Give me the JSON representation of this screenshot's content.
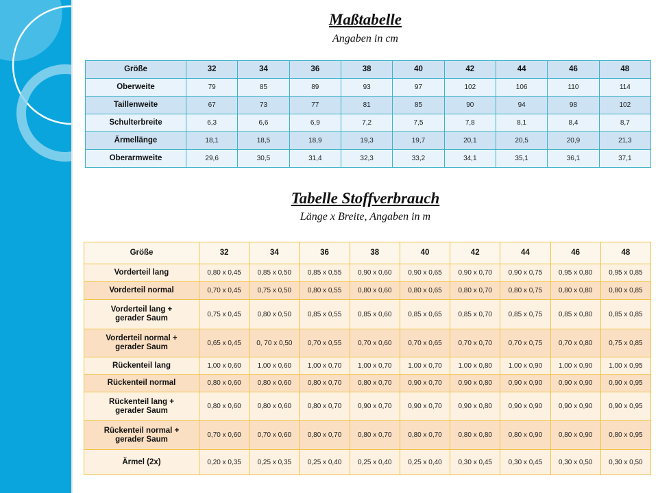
{
  "measurements": {
    "title": "Maßtabelle",
    "subtitle": "Angaben in cm",
    "header": [
      "Größe",
      "32",
      "34",
      "36",
      "38",
      "40",
      "42",
      "44",
      "46",
      "48"
    ],
    "rows": [
      [
        "Oberweite",
        "79",
        "85",
        "89",
        "93",
        "97",
        "102",
        "106",
        "110",
        "114"
      ],
      [
        "Taillenweite",
        "67",
        "73",
        "77",
        "81",
        "85",
        "90",
        "94",
        "98",
        "102"
      ],
      [
        "Schulterbreite",
        "6,3",
        "6,6",
        "6,9",
        "7,2",
        "7,5",
        "7,8",
        "8,1",
        "8,4",
        "8,7"
      ],
      [
        "Ärmellänge",
        "18,1",
        "18,5",
        "18,9",
        "19,3",
        "19,7",
        "20,1",
        "20,5",
        "20,9",
        "21,3"
      ],
      [
        "Oberarmweite",
        "29,6",
        "30,5",
        "31,4",
        "32,3",
        "33,2",
        "34,1",
        "35,1",
        "36,1",
        "37,1"
      ]
    ]
  },
  "fabric": {
    "title": "Tabelle Stoffverbrauch",
    "subtitle": "Länge x Breite, Angaben in m",
    "header": [
      "Größe",
      "32",
      "34",
      "36",
      "38",
      "40",
      "42",
      "44",
      "46",
      "48"
    ],
    "rows": [
      [
        "Vorderteil lang",
        "0,80 x 0,45",
        "0,85 x 0,50",
        "0,85 x 0,55",
        "0,90 x 0,60",
        "0,90 x 0,65",
        "0,90 x 0,70",
        "0,90 x 0,75",
        "0,95 x 0,80",
        "0,95 x 0,85"
      ],
      [
        "Vorderteil normal",
        "0,70 x 0,45",
        "0,75 x 0,50",
        "0,80 x 0,55",
        "0,80 x 0,60",
        "0,80 x 0,65",
        "0,80 x 0,70",
        "0,80 x 0,75",
        "0,80 x 0,80",
        "0,80 x 0,85"
      ],
      [
        "Vorderteil lang + gerader Saum",
        "0,75 x 0,45",
        "0,80 x 0,50",
        "0,85 x 0,55",
        "0,85 x 0,60",
        "0,85 x 0,65",
        "0,85 x 0,70",
        "0,85 x 0,75",
        "0,85 x 0,80",
        "0,85 x 0,85"
      ],
      [
        "Vorderteil normal + gerader Saum",
        "0,65 x 0,45",
        "0, 70 x 0,50",
        "0,70 x 0,55",
        "0,70 x 0,60",
        "0,70 x 0,65",
        "0,70 x 0,70",
        "0,70 x 0,75",
        "0,70 x 0,80",
        "0,75 x 0,85"
      ],
      [
        "Rückenteil lang",
        "1,00 x 0,60",
        "1,00 x 0,60",
        "1,00 x 0,70",
        "1,00 x 0,70",
        "1,00 x 0,70",
        "1,00 x 0,80",
        "1,00 x 0,90",
        "1,00 x 0,90",
        "1,00 x 0,95"
      ],
      [
        "Rückenteil normal",
        "0,80 x 0,60",
        "0,80 x 0,60",
        "0,80 x 0,70",
        "0,80 x 0,70",
        "0,90 x 0,70",
        "0,90 x 0,80",
        "0,90 x 0,90",
        "0,90 x 0,90",
        "0,90 x 0,95"
      ],
      [
        "Rückenteil lang + gerader Saum",
        "0,80 x 0,60",
        "0,80 x 0,60",
        "0,80 x 0,70",
        "0,90 x 0,70",
        "0,90 x 0,70",
        "0,90 x 0,80",
        "0,90 x 0,90",
        "0,90 x 0,90",
        "0,90 x 0,95"
      ],
      [
        "Rückenteil normal + gerader Saum",
        "0,70 x 0,60",
        "0,70 x 0,60",
        "0,80 x 0,70",
        "0,80 x 0,70",
        "0,80 x 0,70",
        "0,80 x 0,80",
        "0,80 x 0,90",
        "0,80 x 0,90",
        "0,80 x 0,95"
      ],
      [
        "Ärmel (2x)",
        "0,20 x 0,35",
        "0,25 x 0,35",
        "0,25 x 0,40",
        "0,25 x 0,40",
        "0,25 x 0,40",
        "0,30 x 0,45",
        "0,30 x 0,45",
        "0,30 x 0,50",
        "0,30 x 0,50"
      ]
    ]
  },
  "colors": {
    "sidebar": "#0aa5dc",
    "table1_border": "#3bb3c9",
    "table2_border": "#f0c446"
  }
}
